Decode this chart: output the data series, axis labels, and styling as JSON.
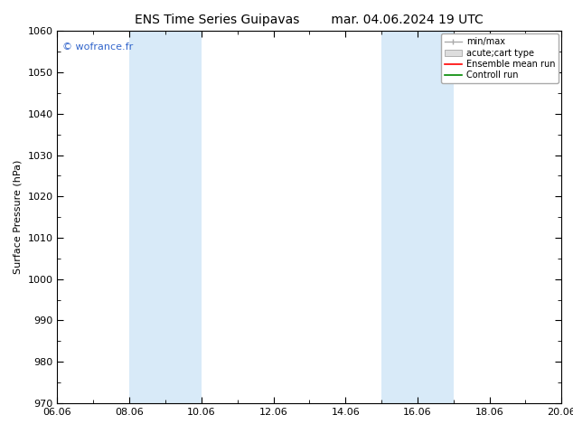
{
  "title_left": "ENS Time Series Guipavas",
  "title_right": "mar. 04.06.2024 19 UTC",
  "ylabel": "Surface Pressure (hPa)",
  "ylim": [
    970,
    1060
  ],
  "yticks": [
    970,
    980,
    990,
    1000,
    1010,
    1020,
    1030,
    1040,
    1050,
    1060
  ],
  "xlim_start": 0,
  "xlim_end": 14,
  "xtick_labels": [
    "06.06",
    "08.06",
    "10.06",
    "12.06",
    "14.06",
    "16.06",
    "18.06",
    "20.06"
  ],
  "xtick_positions": [
    0,
    2,
    4,
    6,
    8,
    10,
    12,
    14
  ],
  "shaded_regions": [
    {
      "xstart": 2.0,
      "xend": 4.0
    },
    {
      "xstart": 9.0,
      "xend": 11.0
    }
  ],
  "shade_color": "#d8eaf8",
  "watermark": "© wofrance.fr",
  "watermark_color": "#3366cc",
  "background_color": "#ffffff",
  "legend_entries": [
    "min/max",
    "acute;cart type",
    "Ensemble mean run",
    "Controll run"
  ],
  "legend_line_colors": [
    "#aaaaaa",
    "#cccccc",
    "#ff0000",
    "#008800"
  ],
  "title_fontsize": 10,
  "ylabel_fontsize": 8,
  "tick_fontsize": 8,
  "legend_fontsize": 7
}
